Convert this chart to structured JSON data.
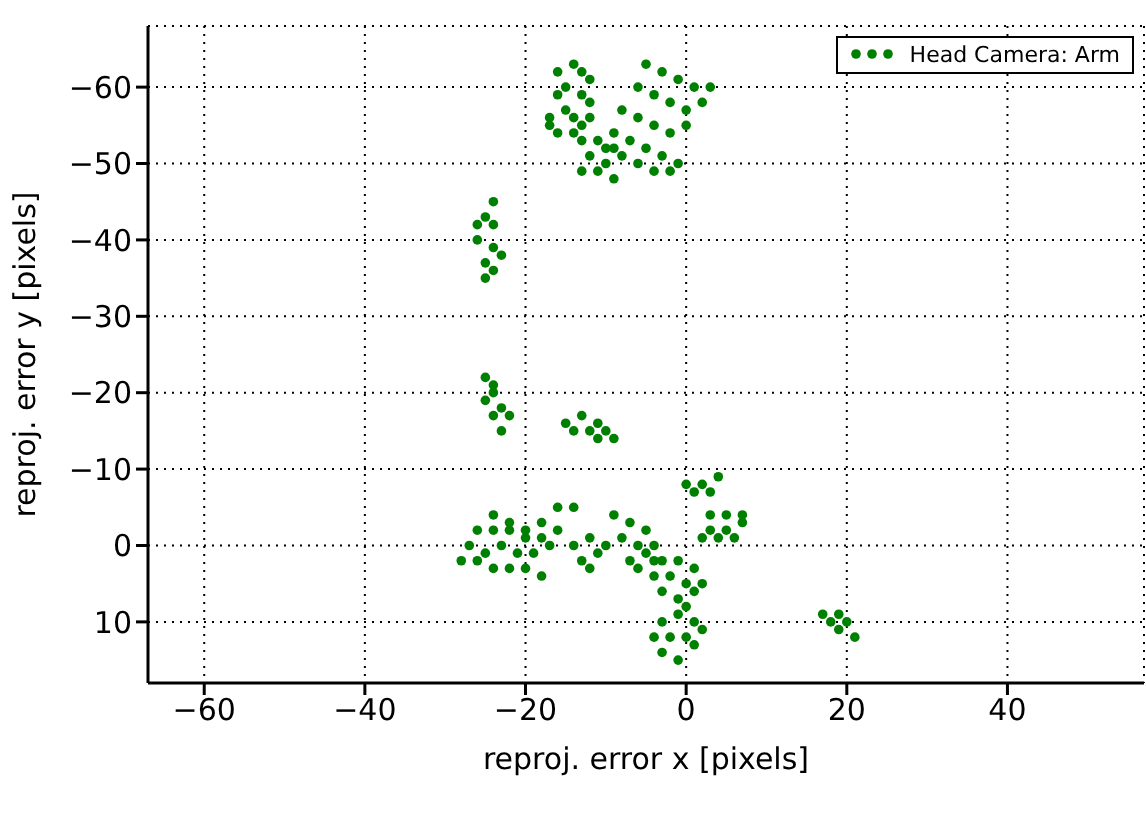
{
  "chart_data": {
    "type": "scatter",
    "xlabel": "reproj. error x [pixels]",
    "ylabel": "reproj. error y [pixels]",
    "xlim": [
      -67,
      57
    ],
    "ylim": [
      18,
      -68
    ],
    "xticks": [
      {
        "value": -60,
        "label": "−60"
      },
      {
        "value": -40,
        "label": "−40"
      },
      {
        "value": -20,
        "label": "−20"
      },
      0,
      20,
      40
    ],
    "yticks": [
      {
        "value": -60,
        "label": "−60"
      },
      {
        "value": -50,
        "label": "−50"
      },
      {
        "value": -40,
        "label": "−40"
      },
      {
        "value": -30,
        "label": "−30"
      },
      {
        "value": -20,
        "label": "−20"
      },
      {
        "value": -10,
        "label": "−10"
      },
      0,
      10
    ],
    "grid": true,
    "legend": "top right",
    "marker": "circle",
    "series": [
      {
        "name": "Head Camera: Arm",
        "color": "#008000",
        "x": [
          -16,
          -14,
          -13,
          -12,
          -16,
          -15,
          -13,
          -12,
          -17,
          -15,
          -14,
          -12,
          -17,
          -16,
          -14,
          -13,
          -13,
          -11,
          -9,
          -12,
          -10,
          -8,
          -13,
          -11,
          -9,
          -10,
          -5,
          -3,
          -1,
          1,
          3,
          -6,
          -4,
          -2,
          0,
          2,
          -8,
          -6,
          -4,
          -2,
          0,
          -9,
          -7,
          -5,
          -3,
          -1,
          -6,
          -4,
          -2,
          -24,
          -25,
          -24,
          -26,
          -24,
          -25,
          -24,
          -25,
          -23,
          -26,
          -25,
          -24,
          -25,
          -23,
          -24,
          -22,
          -23,
          -24,
          -15,
          -13,
          -11,
          -14,
          -12,
          -10,
          -9,
          -11,
          -28,
          -26,
          -24,
          -22,
          -20,
          -18,
          -27,
          -25,
          -23,
          -21,
          -19,
          -26,
          -24,
          -22,
          -20,
          -18,
          -24,
          -22,
          -20,
          -18,
          -16,
          -14,
          -16,
          -17,
          -14,
          -12,
          -11,
          -13,
          -12,
          -10,
          -9,
          -7,
          -5,
          -8,
          -6,
          -5,
          -7,
          -6,
          -4,
          -4,
          0,
          2,
          4,
          1,
          3,
          3,
          5,
          7,
          3,
          5,
          7,
          2,
          4,
          6,
          -3,
          -1,
          1,
          -4,
          -2,
          0,
          2,
          -3,
          -1,
          1,
          0,
          -3,
          -1,
          1,
          -4,
          -2,
          0,
          2,
          -3,
          -1,
          1,
          17,
          19,
          18,
          20,
          19,
          21
        ],
        "values": [
          -62,
          -63,
          -62,
          -61,
          -59,
          -60,
          -59,
          -58,
          -56,
          -57,
          -56,
          -56,
          -55,
          -54,
          -54,
          -55,
          -53,
          -53,
          -52,
          -51,
          -50,
          -51,
          -49,
          -49,
          -48,
          -52,
          -63,
          -62,
          -61,
          -60,
          -60,
          -60,
          -59,
          -58,
          -57,
          -58,
          -57,
          -56,
          -55,
          -54,
          -55,
          -54,
          -53,
          -52,
          -51,
          -50,
          -50,
          -49,
          -49,
          -45,
          -43,
          -42,
          -40,
          -39,
          -37,
          -36,
          -35,
          -38,
          -42,
          -22,
          -21,
          -19,
          -18,
          -17,
          -17,
          -15,
          -20,
          -16,
          -17,
          -16,
          -15,
          -15,
          -15,
          -14,
          -14,
          2,
          2,
          3,
          3,
          3,
          4,
          0,
          1,
          0,
          1,
          1,
          -2,
          -2,
          -2,
          -1,
          -1,
          -4,
          -3,
          -2,
          -3,
          -5,
          -5,
          -2,
          0,
          0,
          -1,
          1,
          2,
          3,
          0,
          -4,
          -3,
          -2,
          -1,
          0,
          1,
          2,
          3,
          2,
          0,
          -8,
          -8,
          -9,
          -7,
          -7,
          -4,
          -4,
          -4,
          -2,
          -2,
          -3,
          -1,
          -1,
          -1,
          2,
          2,
          3,
          4,
          4,
          5,
          5,
          6,
          7,
          6,
          8,
          10,
          9,
          10,
          12,
          12,
          12,
          11,
          14,
          15,
          13,
          9,
          9,
          10,
          10,
          11,
          12
        ]
      }
    ]
  }
}
